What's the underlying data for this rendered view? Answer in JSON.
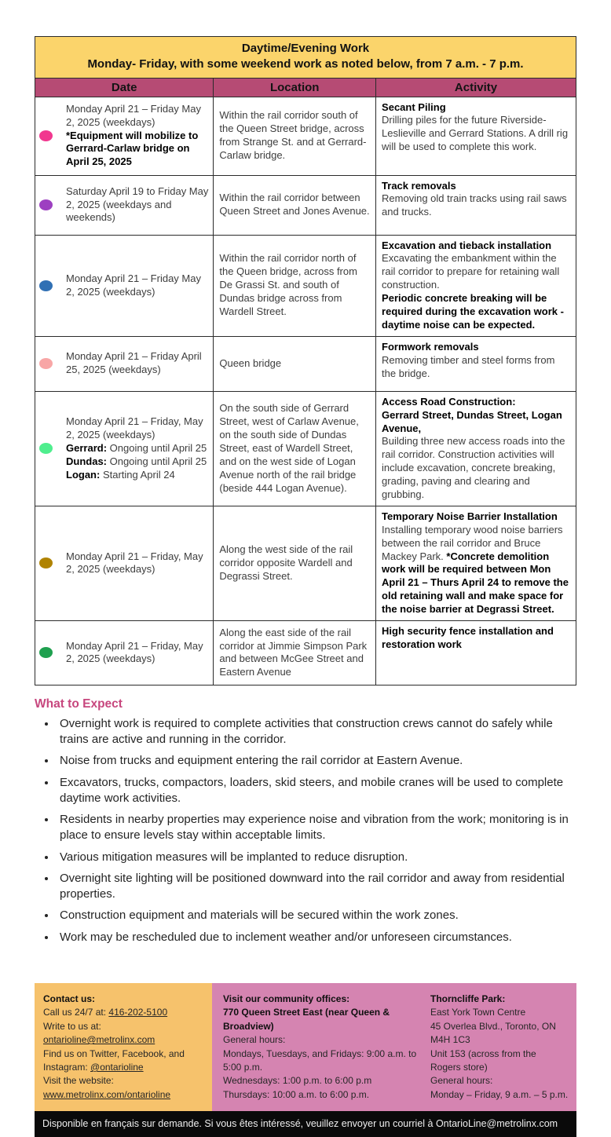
{
  "colors": {
    "header_yellow": "#FBD46B",
    "header_magenta": "#B64B74",
    "heading_pink": "#C7477E",
    "footer_orange": "#F6C26C",
    "footer_pink": "#D584B1",
    "french_bar_bg": "#0A0A0A"
  },
  "table": {
    "title_line1": "Daytime/Evening Work",
    "title_line2": "Monday- Friday, with some weekend work as noted below, from 7 a.m. - 7 p.m.",
    "columns": [
      "Date",
      "Location",
      "Activity"
    ],
    "rows": [
      {
        "dot_color": "#F1378F",
        "dot_name": "pink-zone-dot",
        "date": [
          [
            {
              "t": "Monday April 21 – Friday May 2, 2025 (weekdays)"
            }
          ],
          [
            {
              "t": "*Equipment will mobilize to Gerrard-Carlaw bridge on April 25, 2025",
              "b": true
            }
          ]
        ],
        "location": [
          [
            {
              "t": "Within the rail corridor south of the Queen Street bridge, across from Strange St. and at Gerrard-Carlaw bridge."
            }
          ]
        ],
        "activity": [
          [
            {
              "t": "Secant Piling",
              "b": true
            }
          ],
          [
            {
              "t": "Drilling piles for the future Riverside-Leslieville and Gerrard Stations. A drill rig will be used to complete this work."
            }
          ]
        ]
      },
      {
        "dot_color": "#9D40C1",
        "dot_name": "purple-zone-dot",
        "date": [
          [
            {
              "t": "Saturday April 19 to Friday May 2, 2025 (weekdays and weekends)"
            }
          ]
        ],
        "location": [
          [
            {
              "t": "Within the rail corridor between Queen Street and Jones Avenue."
            }
          ]
        ],
        "activity": [
          [
            {
              "t": "Track removals",
              "b": true
            }
          ],
          [
            {
              "t": "Removing old train tracks using rail saws and trucks."
            }
          ]
        ]
      },
      {
        "dot_color": "#3070B4",
        "dot_name": "blue-zone-dot",
        "date": [
          [
            {
              "t": "Monday April 21 – Friday May 2, 2025 (weekdays)"
            }
          ]
        ],
        "location": [
          [
            {
              "t": "Within the rail corridor north of the Queen bridge, across from De Grassi St. and south of Dundas bridge across from Wardell Street."
            }
          ]
        ],
        "activity": [
          [
            {
              "t": "Excavation and tieback installation",
              "b": true
            }
          ],
          [
            {
              "t": "Excavating the embankment within the rail corridor to prepare for retaining wall construction."
            }
          ],
          [
            {
              "t": "Periodic concrete breaking will be required during the excavation work - daytime noise can be expected.",
              "b": true
            }
          ]
        ]
      },
      {
        "dot_color": "#F8A6A6",
        "dot_name": "light-pink-zone-dot",
        "date": [
          [
            {
              "t": "Monday April 21 – Friday April 25, 2025 (weekdays)"
            }
          ]
        ],
        "location": [
          [
            {
              "t": "Queen bridge"
            }
          ]
        ],
        "activity": [
          [
            {
              "t": "Formwork removals",
              "b": true
            }
          ],
          [
            {
              "t": "Removing timber and steel forms from the bridge."
            }
          ]
        ]
      },
      {
        "dot_color": "#4FEE8E",
        "dot_name": "mint-green-zone-dot",
        "date": [
          [
            {
              "t": "Monday April 21 – Friday, May 2, 2025 (weekdays)"
            }
          ],
          [
            {
              "t": "Gerrard:",
              "b": true
            },
            {
              "t": " Ongoing until April 25"
            }
          ],
          [
            {
              "t": "Dundas:",
              "b": true
            },
            {
              "t": " Ongoing until April 25"
            }
          ],
          [
            {
              "t": "Logan:",
              "b": true
            },
            {
              "t": " Starting April 24"
            }
          ]
        ],
        "location": [
          [
            {
              "t": "On the south side of Gerrard Street, west of Carlaw Avenue, on the south side of Dundas Street, east of Wardell Street, and on the west side of Logan"
            }
          ],
          [
            {
              "t": "Avenue north of the rail bridge (beside 444 Logan Avenue)."
            }
          ]
        ],
        "activity": [
          [
            {
              "t": "Access Road Construction:",
              "b": true
            }
          ],
          [
            {
              "t": "Gerrard Street, Dundas Street, Logan Avenue,",
              "b": true
            }
          ],
          [
            {
              "t": "Building three new access roads into the rail corridor. Construction activities will include excavation, concrete breaking, grading, paving and clearing and grubbing."
            }
          ]
        ]
      },
      {
        "dot_color": "#B08300",
        "dot_name": "dark-yellow-zone-dot",
        "date": [
          [
            {
              "t": "Monday April 21 – Friday, May 2, 2025 (weekdays)"
            }
          ]
        ],
        "location": [
          [
            {
              "t": "Along the west side of the rail corridor opposite Wardell and Degrassi Street."
            }
          ]
        ],
        "activity": [
          [
            {
              "t": "Temporary Noise Barrier Installation",
              "b": true
            }
          ],
          [
            {
              "t": "Installing temporary wood noise barriers between the rail corridor and Bruce Mackey Park. "
            },
            {
              "t": "*Concrete demolition work will be required between Mon April 21 – Thurs April 24 to remove the old retaining wall and make space for the noise barrier at Degrassi Street.",
              "b": true
            }
          ]
        ]
      },
      {
        "dot_color": "#1FA04F",
        "dot_name": "green-zone-dot",
        "date": [
          [
            {
              "t": "Monday April 21 – Friday, May 2, 2025 (weekdays)"
            }
          ]
        ],
        "location": [
          [
            {
              "t": "Along the east side of the rail corridor at Jimmie Simpson Park and between McGee Street and Eastern Avenue"
            }
          ]
        ],
        "activity": [
          [
            {
              "t": "High security fence installation and restoration work",
              "b": true
            }
          ]
        ]
      }
    ]
  },
  "what_to_expect": {
    "heading": "What to Expect",
    "bullets": [
      "Overnight work is required to complete activities that construction crews cannot do safely while trains are active and running in the corridor.",
      "Noise from trucks and equipment entering the rail corridor at Eastern Avenue.",
      "Excavators, trucks, compactors, loaders, skid steers, and mobile cranes will be used to complete daytime work activities.",
      "Residents in nearby properties may experience noise and vibration from the work; monitoring is in place to ensure levels stay within acceptable limits.",
      "Various mitigation measures will be implanted to reduce disruption.",
      "Overnight site lighting will be positioned downward into the rail corridor and away from residential properties.",
      "Construction equipment and materials will be secured within the work zones.",
      "Work may be rescheduled due to inclement weather and/or unforeseen circumstances."
    ]
  },
  "footer": {
    "contact": {
      "heading": "Contact us:",
      "lines": [
        [
          {
            "t": "Call us 24/7 at: "
          },
          {
            "t": "416-202-5100",
            "link": true,
            "name": "phone-link"
          }
        ],
        [
          {
            "t": "Write to us at: "
          },
          {
            "t": "ontarioline@metrolinx.com",
            "link": true,
            "name": "email-link"
          }
        ],
        [
          {
            "t": "Find us on Twitter, Facebook, and Instagram: "
          },
          {
            "t": "@ontarioline",
            "link": true,
            "name": "social-link"
          }
        ],
        [
          {
            "t": "Visit the website:"
          }
        ],
        [
          {
            "t": "www.metrolinx.com/ontarioline",
            "link": true,
            "name": "website-link"
          }
        ]
      ]
    },
    "offices": {
      "heading": "Visit our community offices:",
      "bold_lines": [
        "770 Queen Street East (near Queen & Broadview)"
      ],
      "lines": [
        "General hours:",
        "Mondays, Tuesdays, and Fridays: 9:00 a.m. to 5:00 p.m.",
        "Wednesdays: 1:00 p.m. to 6:00 p.m",
        "Thursdays: 10:00 a.m. to 6:00 p.m."
      ]
    },
    "thorncliffe": {
      "heading": "Thorncliffe Park:",
      "lines": [
        "East York Town Centre",
        "45 Overlea Blvd., Toronto, ON M4H 1C3",
        "Unit 153 (across from the Rogers store)",
        "General hours:",
        "Monday – Friday, 9 a.m. – 5 p.m."
      ]
    },
    "french_bar": "Disponible en français sur demande. Si vous êtes intéressé, veuillez envoyer un courriel à OntarioLine@metrolinx.com"
  }
}
